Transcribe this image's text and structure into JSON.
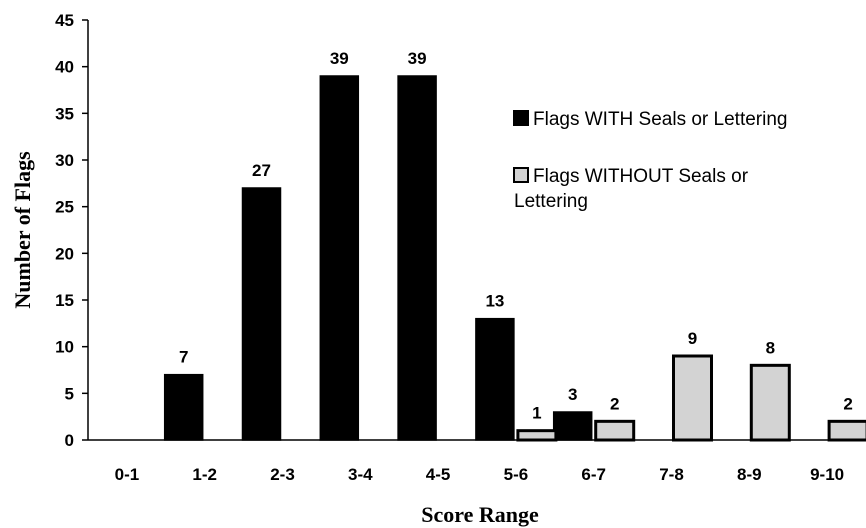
{
  "chart_data": {
    "type": "bar",
    "title": "",
    "xlabel": "Score Range",
    "ylabel": "Number of Flags",
    "ylim": [
      0,
      45
    ],
    "yticks": [
      "0",
      "5",
      "10",
      "15",
      "20",
      "25",
      "30",
      "35",
      "40",
      "45"
    ],
    "categories": [
      "0-1",
      "1-2",
      "2-3",
      "3-4",
      "4-5",
      "5-6",
      "6-7",
      "7-8",
      "8-9",
      "9-10"
    ],
    "series": [
      {
        "name": "Flags WITH Seals or Lettering",
        "color": "#000000",
        "values": [
          0,
          7,
          27,
          39,
          39,
          13,
          3,
          0,
          0,
          0
        ],
        "labels": [
          "",
          "7",
          "27",
          "39",
          "39",
          "13",
          "3",
          "",
          "",
          ""
        ]
      },
      {
        "name": "Flags WITHOUT Seals or Lettering",
        "color": "#d3d3d3",
        "values": [
          0,
          0,
          0,
          0,
          0,
          1,
          2,
          9,
          8,
          2
        ],
        "labels": [
          "",
          "",
          "",
          "",
          "",
          "1",
          "2",
          "9",
          "8",
          "2"
        ]
      }
    ],
    "legend": {
      "position": "right",
      "entries": [
        {
          "lines": [
            "Flags WITH Seals or Lettering"
          ]
        },
        {
          "lines": [
            "Flags WITHOUT Seals or",
            "Lettering"
          ]
        }
      ]
    },
    "grid": false
  }
}
